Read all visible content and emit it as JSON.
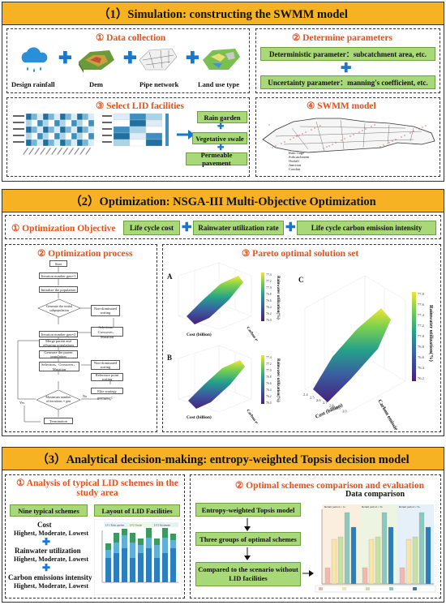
{
  "sections": [
    {
      "title": "（1）Simulation: constructing the SWMM model"
    },
    {
      "title": "（2）Optimization: NSGA-III Multi-Objective Optimization"
    },
    {
      "title": "（3）Analytical decision-making: entropy-weighted Topsis decision model"
    }
  ],
  "s1": {
    "data_collection": "① Data collection",
    "items": [
      "Design rainfall",
      "Dem",
      "Pipe network",
      "Land use type"
    ],
    "determine": "② Determine parameters",
    "deterministic": "Deterministic parameter：subcatchment area, etc.",
    "uncertainty": "Uncertainty parameter：manning's coefficient, etc.",
    "select_lid": "③ Select LID facilities",
    "lid": [
      "Rain garden",
      "Vegetative swale",
      "Permeable pavement"
    ],
    "swmm": "④ SWMM model",
    "map_legend": [
      "Rain Gage",
      "Subcatchment",
      "Outfall",
      "Junction",
      "Conduit"
    ]
  },
  "s2": {
    "objective": "① Optimization Objective",
    "objectives": [
      "Life cycle cost",
      "Rainwater utilization rate",
      "Life cycle carbon emission intensity"
    ],
    "process": "② Optimization process",
    "pareto": "③ Pareto optimal solution set",
    "flow": {
      "start": "Start",
      "gen1": "Iteration number gen=1",
      "init": "Initialize the population",
      "gen_init": "Generate the initial subpopulation",
      "nondom": "Non-dominated sorting",
      "sel_cross": "Selection、Crossover、Mutation",
      "gen2": "Iteration number gen=2",
      "merge": "Merge parent and offspring populations",
      "gen_parent": "Generate the parent population",
      "sel_cross2": "Selection、Crossover、Mutation",
      "nondom2": "Non-dominated sorting",
      "ref": "Reference point sorting",
      "elite": "Elite strategy",
      "maxiter": "Maximum number of iterations = gen",
      "term": "Termination",
      "yes": "Yes",
      "no": "No",
      "gen_plus": "gen=gen+1"
    },
    "plots": {
      "labelA": "A",
      "labelB": "B",
      "labelC": "C",
      "xlabel": "Cost (billion)",
      "ylabel": "Carbon emission",
      "zlabel": "Rainwater utilization(%)",
      "A_ticks": [
        "77.4",
        "77.2",
        "77.0",
        "76.8",
        "76.6",
        "76.4",
        "76.2",
        "76.0"
      ],
      "C_ticks": [
        "77.8",
        "77.6",
        "77.4",
        "77.2",
        "77.0",
        "76.8",
        "76.6",
        "76.4",
        "76.2"
      ],
      "C_xticks": [
        "2.4",
        "2.5",
        "2.6",
        "2.7",
        "2.8",
        "2.9",
        "3.0"
      ]
    }
  },
  "s3": {
    "analysis": "① Analysis of typical LID schemes in the study area",
    "nine": "Nine typical schemes",
    "layout": "Layout of LID Facilities",
    "cost": "Cost",
    "rain": "Rainwater utilization",
    "carbon": "Carbon emissions intensity",
    "levels": "Highest, Moderate, Lowest",
    "comparison": "② Optimal schemes comparison and evaluation",
    "topsis": "Entropy-weighted Topsis model",
    "three": "Three groups of optimal schemes",
    "compared": "Compared to the scenario without LID facilities",
    "data_comp": "Data comparison",
    "rp": [
      "Return period = 1a",
      "Return period = 3a",
      "Return period = 5a"
    ],
    "layout_legend": [
      "LV1 Rain garden",
      "LV2 Swale",
      "LV3 Pavement"
    ]
  },
  "colors": {
    "header": "#f7b224",
    "green": "#a8d878",
    "orange": "#e8501c",
    "blue": "#1a78c8"
  }
}
